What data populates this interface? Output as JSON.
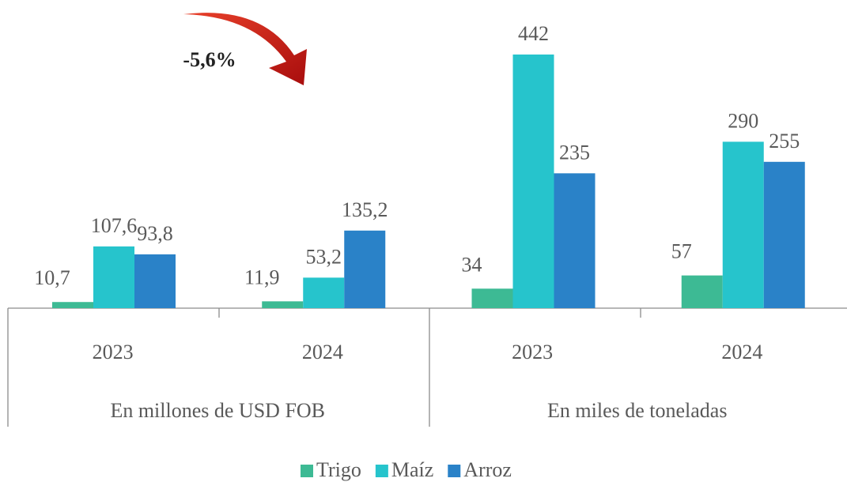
{
  "chart_data": {
    "type": "bar",
    "annotation": "-5,6%",
    "groups": [
      "En millones de USD FOB",
      "En miles de toneladas"
    ],
    "categories": [
      "2023",
      "2024",
      "2023",
      "2024"
    ],
    "series": [
      {
        "name": "Trigo",
        "color": "#3dba94",
        "values": [
          10.7,
          11.9,
          34,
          57
        ],
        "value_labels": [
          "10,7",
          "11,9",
          "34",
          "57"
        ]
      },
      {
        "name": "Maíz",
        "color": "#26c4cc",
        "values": [
          107.6,
          53.2,
          442,
          290
        ],
        "value_labels": [
          "107,6",
          "53,2",
          "442",
          "290"
        ]
      },
      {
        "name": "Arroz",
        "color": "#2a82c8",
        "values": [
          93.8,
          135.2,
          235,
          255
        ],
        "value_labels": [
          "93,8",
          "135,2",
          "235",
          "255"
        ]
      }
    ]
  }
}
